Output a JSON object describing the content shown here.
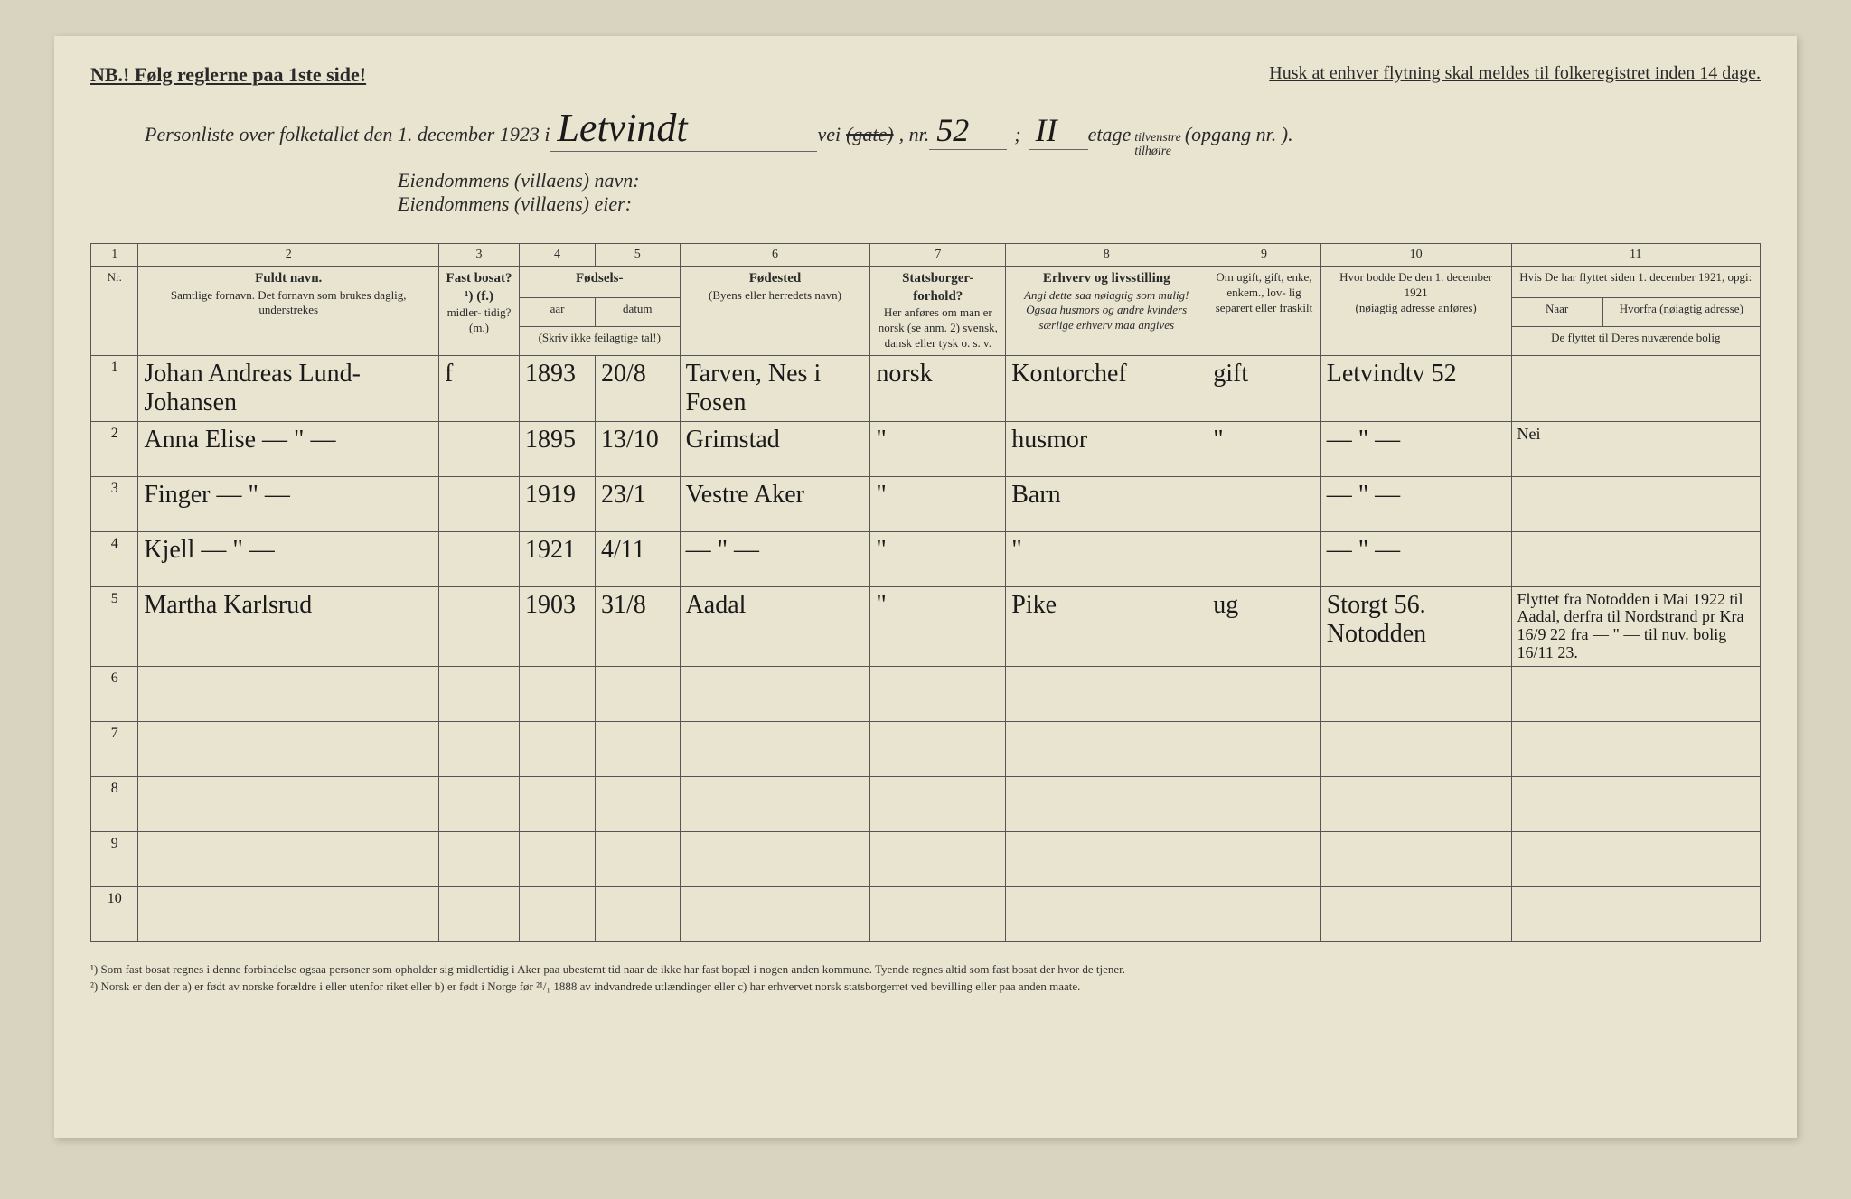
{
  "top": {
    "nb": "NB.! Følg reglerne paa 1ste side!",
    "right": "Husk at enhver flytning skal meldes til folkeregistret inden 14 dage."
  },
  "header": {
    "intro": "Personliste over folketallet den 1. december 1923 i",
    "street": "Letvindt",
    "vei": "vei",
    "gate": "(gate)",
    "nr_label": ", nr.",
    "nr": "52",
    "semicolon": ";",
    "etage": "II",
    "etage_label": "etage",
    "tilvenstre": "tilvenstre",
    "tilhoire": "tilhøire",
    "opgang": "(opgang nr.        ).",
    "eiendom_navn": "Eiendommens (villaens) navn:",
    "eiendom_eier": "Eiendommens (villaens) eier:"
  },
  "columns": {
    "nums": [
      "1",
      "2",
      "3",
      "4",
      "5",
      "6",
      "7",
      "8",
      "9",
      "10",
      "11"
    ],
    "nr": "Nr.",
    "c2_title": "Fuldt navn.",
    "c2_sub": "Samtlige fornavn.\nDet fornavn som brukes daglig,\nunderstrekes",
    "c3_title": "Fast\nbosat?¹)\n(f.)",
    "c3_sub": "midler-\ntidig?\n(m.)",
    "c45_title": "Fødsels-",
    "c4": "aar",
    "c5": "datum",
    "c45_sub": "(Skriv ikke feilagtige\ntal!)",
    "c6_title": "Fødested",
    "c6_sub": "(Byens eller herredets\nnavn)",
    "c7_title": "Statsborger-\nforhold?",
    "c7_sub": "Her anføres om\nman er norsk\n(se anm. 2)\nsvensk, dansk\neller tysk o. s. v.",
    "c8_title": "Erhverv og livsstilling",
    "c8_sub": "Angi dette saa nøiagtig\nsom mulig!\nOgsaa husmors og andre\nkvinders særlige erhverv maa\nangives",
    "c9_title": "Om ugift,\ngift, enke,\nenkem., lov-\nlig separert\neller fraskilt",
    "c10_title": "Hvor bodde De den\n1. december 1921",
    "c10_sub": "(nøiagtig adresse\nanføres)",
    "c11_title": "Hvis De har flyttet siden\n1. december 1921, opgi:",
    "c11_naar": "Naar",
    "c11_hvorfra": "Hvorfra (nøiagtig\nadresse)",
    "c11_bolig": "De flyttet til Deres nuværende\nbolig"
  },
  "rows": [
    {
      "nr": "1",
      "name": "Johan Andreas Lund-Johansen",
      "bosat": "f",
      "aar": "1893",
      "datum": "20/8",
      "fodested": "Tarven, Nes i Fosen",
      "statsborg": "norsk",
      "erhverv": "Kontorchef",
      "ugift": "gift",
      "bodde": "Letvindtv 52",
      "flyttet": ""
    },
    {
      "nr": "2",
      "name": "Anna Elise     — \" —",
      "bosat": "",
      "aar": "1895",
      "datum": "13/10",
      "fodested": "Grimstad",
      "statsborg": "\"",
      "erhverv": "husmor",
      "ugift": "\"",
      "bodde": "— \" —",
      "flyttet": "Nei"
    },
    {
      "nr": "3",
      "name": "Finger          — \" —",
      "bosat": "",
      "aar": "1919",
      "datum": "23/1",
      "fodested": "Vestre Aker",
      "statsborg": "\"",
      "erhverv": "Barn",
      "ugift": "",
      "bodde": "— \" —",
      "flyttet": ""
    },
    {
      "nr": "4",
      "name": "Kjell            — \" —",
      "bosat": "",
      "aar": "1921",
      "datum": "4/11",
      "fodested": "— \" —",
      "statsborg": "\"",
      "erhverv": "\"",
      "ugift": "",
      "bodde": "— \" —",
      "flyttet": ""
    },
    {
      "nr": "5",
      "name": "Martha Karlsrud",
      "bosat": "",
      "aar": "1903",
      "datum": "31/8",
      "fodested": "Aadal",
      "statsborg": "\"",
      "erhverv": "Pike",
      "ugift": "ug",
      "bodde": "Storgt 56. Notodden",
      "flyttet": "Flyttet fra Notodden i Mai 1922 til Aadal, derfra til Nordstrand pr Kra 16/9 22 fra — \" — til nuv. bolig 16/11 23."
    },
    {
      "nr": "6",
      "name": "",
      "bosat": "",
      "aar": "",
      "datum": "",
      "fodested": "",
      "statsborg": "",
      "erhverv": "",
      "ugift": "",
      "bodde": "",
      "flyttet": ""
    },
    {
      "nr": "7",
      "name": "",
      "bosat": "",
      "aar": "",
      "datum": "",
      "fodested": "",
      "statsborg": "",
      "erhverv": "",
      "ugift": "",
      "bodde": "",
      "flyttet": ""
    },
    {
      "nr": "8",
      "name": "",
      "bosat": "",
      "aar": "",
      "datum": "",
      "fodested": "",
      "statsborg": "",
      "erhverv": "",
      "ugift": "",
      "bodde": "",
      "flyttet": ""
    },
    {
      "nr": "9",
      "name": "",
      "bosat": "",
      "aar": "",
      "datum": "",
      "fodested": "",
      "statsborg": "",
      "erhverv": "",
      "ugift": "",
      "bodde": "",
      "flyttet": ""
    },
    {
      "nr": "10",
      "name": "",
      "bosat": "",
      "aar": "",
      "datum": "",
      "fodested": "",
      "statsborg": "",
      "erhverv": "",
      "ugift": "",
      "bodde": "",
      "flyttet": ""
    }
  ],
  "footer": {
    "note1": "¹) Som fast bosat regnes i denne forbindelse ogsaa personer som opholder sig midlertidig i Aker paa ubestemt tid naar de ikke har fast bopæl i nogen anden kommune. Tyende regnes altid som fast bosat der hvor de tjener.",
    "note2": "²) Norsk er den der a) er født av norske forældre i eller utenfor riket eller b) er født i Norge før ²¹/₁ 1888 av indvandrede utlændinger eller c) har erhvervet norsk statsborgerret ved bevilling eller paa anden maate."
  },
  "colors": {
    "page_bg": "#e8e4d0",
    "body_bg": "#d8d4c0",
    "ink": "#1a1a1a",
    "print": "#2a2a2a",
    "red_mark": "#c0392b",
    "rule": "#555"
  }
}
